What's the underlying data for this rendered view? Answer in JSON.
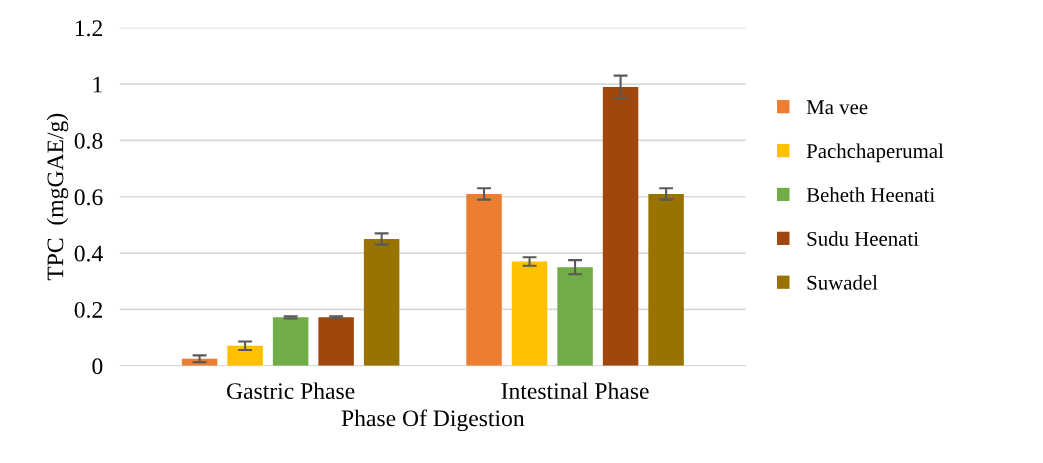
{
  "chart_data": {
    "type": "bar",
    "xlabel": "Phase Of Digestion",
    "ylabel": "TPC  (mgGAE/g)",
    "categories": [
      "Gastric Phase",
      "Intestinal Phase"
    ],
    "series": [
      {
        "name": "Ma vee",
        "color": "#ed7d31",
        "values": [
          0.025,
          0.61
        ],
        "errors": [
          0.012,
          0.02
        ]
      },
      {
        "name": "Pachchaperumal",
        "color": "#ffc000",
        "values": [
          0.071,
          0.37
        ],
        "errors": [
          0.015,
          0.015
        ]
      },
      {
        "name": "Beheth Heenati",
        "color": "#70ad47",
        "values": [
          0.172,
          0.35
        ],
        "errors": [
          0.004,
          0.025
        ]
      },
      {
        "name": "Sudu Heenati",
        "color": "#9e480e",
        "values": [
          0.172,
          0.99
        ],
        "errors": [
          0.004,
          0.04
        ]
      },
      {
        "name": "Suwadel",
        "color": "#997300",
        "values": [
          0.45,
          0.61
        ],
        "errors": [
          0.02,
          0.02
        ]
      }
    ],
    "ylim": [
      0,
      1.2
    ],
    "yticks": [
      0,
      0.2,
      0.4,
      0.6,
      0.8,
      1,
      1.2
    ],
    "grid": "y",
    "legend": "right"
  }
}
